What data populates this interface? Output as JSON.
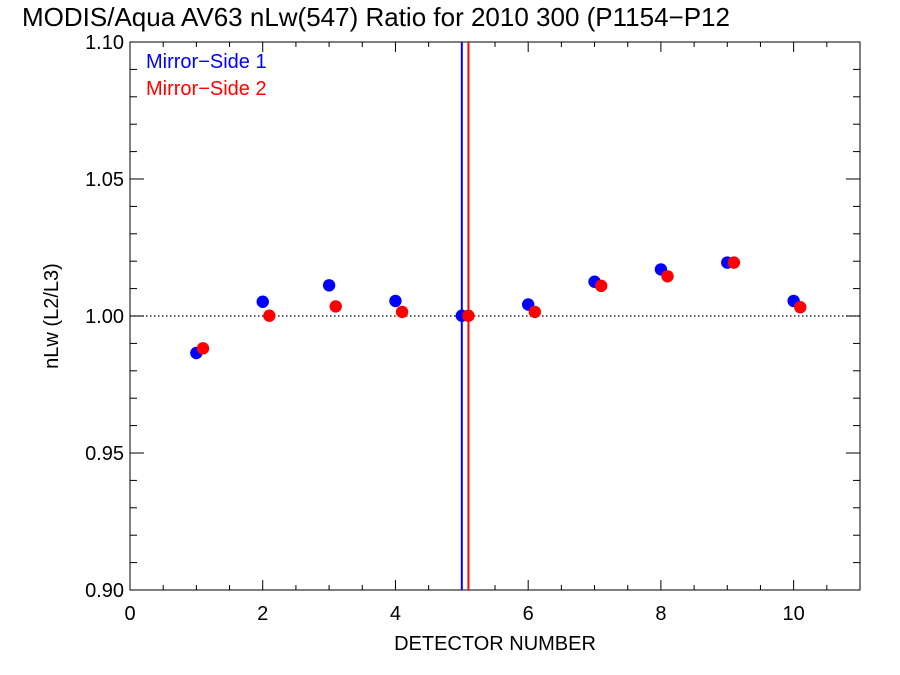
{
  "chart_data": {
    "type": "scatter",
    "title": "MODIS/Aqua AV63 nLw(547) Ratio for 2010 300 (P1154−P12",
    "xlabel": "DETECTOR NUMBER",
    "ylabel": "nLw (L2/L3)",
    "xlim": [
      0,
      11
    ],
    "ylim": [
      0.9,
      1.1
    ],
    "xticks": [
      "0",
      "2",
      "4",
      "6",
      "8",
      "10"
    ],
    "yticks": [
      "0.90",
      "0.95",
      "1.00",
      "1.05",
      "1.10"
    ],
    "legend_position": "top-left",
    "reference_line_y": 1.0,
    "vertical_lines": [
      {
        "x": 5.0,
        "color": "#0000ff"
      },
      {
        "x": 5.1,
        "color": "#ff0000"
      }
    ],
    "series": [
      {
        "name": "Mirror−Side 1",
        "color": "#0000ff",
        "x": [
          1,
          2,
          3,
          4,
          5,
          6,
          7,
          8,
          9,
          10
        ],
        "y": [
          0.9865,
          1.0052,
          1.0112,
          1.0055,
          1.0001,
          1.0042,
          1.0125,
          1.017,
          1.0195,
          1.0055
        ]
      },
      {
        "name": "Mirror−Side 2",
        "color": "#ff0000",
        "x": [
          1.1,
          2.1,
          3.1,
          4.1,
          5.1,
          6.1,
          7.1,
          8.1,
          9.1,
          10.1
        ],
        "y": [
          0.9882,
          1.0001,
          1.0035,
          1.0015,
          1.0001,
          1.0015,
          1.011,
          1.0145,
          1.0195,
          1.0032
        ]
      }
    ]
  }
}
